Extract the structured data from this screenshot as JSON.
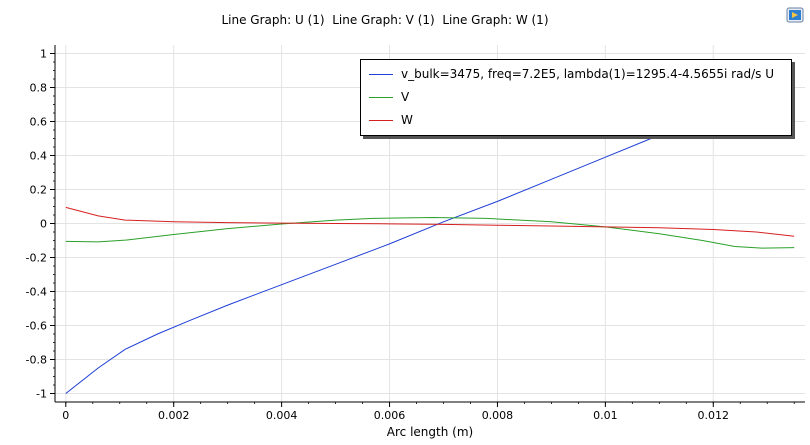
{
  "chart_data": {
    "type": "line",
    "title": "Line Graph: U (1)  Line Graph: V (1)  Line Graph: W (1)",
    "xlabel": "Arc length (m)",
    "ylabel": "",
    "xlim": [
      -0.0002,
      0.0137
    ],
    "ylim": [
      -1.05,
      1.05
    ],
    "grid": true,
    "legend_position": "top-right",
    "xticks": [
      "0",
      "0.002",
      "0.004",
      "0.006",
      "0.008",
      "0.01",
      "0.012"
    ],
    "yticks": [
      "1",
      "0.8",
      "0.6",
      "0.4",
      "0.2",
      "0",
      "-0.2",
      "-0.4",
      "-0.6",
      "-0.8",
      "-1"
    ],
    "series": [
      {
        "name": "v_bulk=3475, freq=7.2E5, lambda(1)=1295.4-4.5655i rad/s U",
        "color": "#1f3fd6",
        "x": [
          0,
          0.0006,
          0.0011,
          0.0017,
          0.0023,
          0.003,
          0.004,
          0.005,
          0.006,
          0.007,
          0.008,
          0.009,
          0.01,
          0.011
        ],
        "y": [
          -1.0,
          -0.85,
          -0.74,
          -0.65,
          -0.57,
          -0.48,
          -0.36,
          -0.24,
          -0.12,
          0.01,
          0.13,
          0.26,
          0.39,
          0.52
        ]
      },
      {
        "name": "V",
        "color": "#2aa02a",
        "x": [
          0,
          0.0006,
          0.0011,
          0.002,
          0.003,
          0.004,
          0.005,
          0.0057,
          0.0068,
          0.0078,
          0.009,
          0.01,
          0.011,
          0.0118,
          0.0124,
          0.0129,
          0.0135
        ],
        "y": [
          -0.105,
          -0.108,
          -0.098,
          -0.065,
          -0.03,
          -0.003,
          0.02,
          0.03,
          0.035,
          0.03,
          0.01,
          -0.02,
          -0.06,
          -0.1,
          -0.135,
          -0.145,
          -0.142
        ]
      },
      {
        "name": "W",
        "color": "#d62020",
        "x": [
          0,
          0.0006,
          0.0011,
          0.002,
          0.003,
          0.004,
          0.005,
          0.006,
          0.007,
          0.008,
          0.009,
          0.01,
          0.011,
          0.012,
          0.0128,
          0.0135
        ],
        "y": [
          0.095,
          0.045,
          0.02,
          0.01,
          0.005,
          0.002,
          0.0,
          -0.002,
          -0.005,
          -0.01,
          -0.015,
          -0.02,
          -0.025,
          -0.035,
          -0.05,
          -0.075
        ]
      }
    ]
  },
  "toolbar": {
    "snapshot_icon": "image-snapshot-icon"
  }
}
